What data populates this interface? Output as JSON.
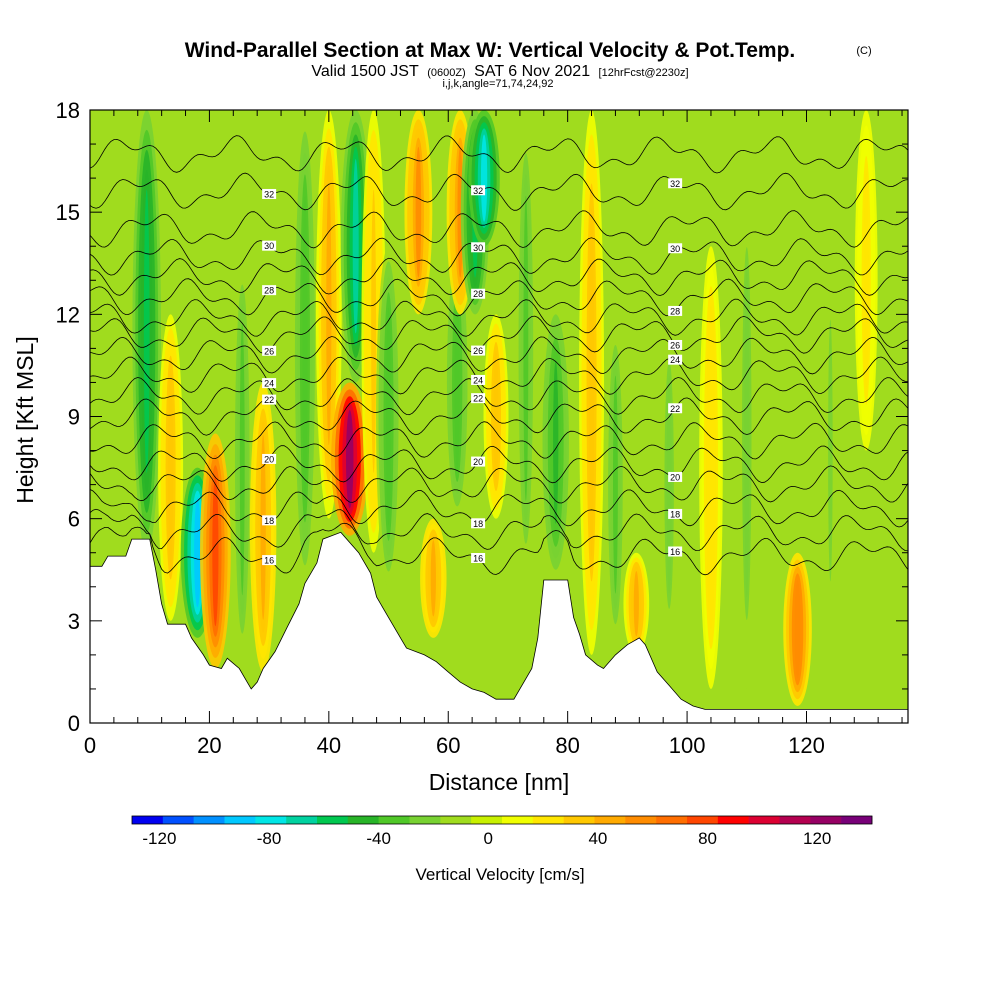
{
  "chart_data": {
    "type": "heatmap",
    "title": "Wind-Parallel Section at Max W: Vertical Velocity & Pot.Temp.",
    "title_mark": "(C)",
    "subtitle_parts": [
      "Valid 1500 JST",
      "(0600Z)",
      "SAT 6 Nov 2021",
      "[12hrFcst@2230z]"
    ],
    "subtitle2": "i,j,k,angle=71,74,24,92",
    "xlabel": "Distance [nm]",
    "ylabel": "Height [Kft MSL]",
    "xlim": [
      0,
      137
    ],
    "ylim": [
      0,
      18
    ],
    "x_ticks": [
      0,
      20,
      40,
      60,
      80,
      100,
      120
    ],
    "y_ticks": [
      0,
      3,
      6,
      9,
      12,
      15,
      18
    ],
    "colorbar": {
      "label": "Vertical Velocity [cm/s]",
      "range": [
        -130,
        140
      ],
      "ticks": [
        -120,
        -80,
        -40,
        0,
        40,
        80,
        120
      ],
      "colors": [
        "#0000f0",
        "#0050ff",
        "#0090ff",
        "#00c8ff",
        "#00e6e6",
        "#00d2a0",
        "#00c850",
        "#28b428",
        "#50c828",
        "#78d232",
        "#a0dc1e",
        "#c8f000",
        "#f0ff00",
        "#ffe600",
        "#ffc800",
        "#ffaa00",
        "#ff8c00",
        "#ff6e00",
        "#ff4600",
        "#ff0000",
        "#dc0032",
        "#b40050",
        "#960064",
        "#780078"
      ]
    },
    "terrain_kft": [
      [
        0,
        4.6
      ],
      [
        2,
        4.6
      ],
      [
        3,
        4.9
      ],
      [
        6,
        4.9
      ],
      [
        7,
        5.4
      ],
      [
        10,
        5.4
      ],
      [
        11,
        4.5
      ],
      [
        12,
        3.5
      ],
      [
        13,
        2.9
      ],
      [
        16,
        2.9
      ],
      [
        17,
        2.5
      ],
      [
        19,
        2.0
      ],
      [
        20,
        1.7
      ],
      [
        22,
        1.6
      ],
      [
        23,
        1.9
      ],
      [
        25,
        1.6
      ],
      [
        26,
        1.3
      ],
      [
        27,
        1.0
      ],
      [
        28,
        1.2
      ],
      [
        29,
        1.6
      ],
      [
        31,
        2.1
      ],
      [
        33,
        2.8
      ],
      [
        35,
        3.5
      ],
      [
        36,
        4.1
      ],
      [
        38,
        4.7
      ],
      [
        39,
        5.4
      ],
      [
        42,
        5.6
      ],
      [
        45,
        5.0
      ],
      [
        47,
        4.4
      ],
      [
        48,
        3.7
      ],
      [
        50,
        3.1
      ],
      [
        52,
        2.5
      ],
      [
        53,
        2.2
      ],
      [
        56,
        2.0
      ],
      [
        58,
        1.8
      ],
      [
        60,
        1.5
      ],
      [
        62,
        1.2
      ],
      [
        64,
        1.0
      ],
      [
        66,
        0.9
      ],
      [
        68,
        0.7
      ],
      [
        71,
        0.7
      ],
      [
        72,
        1.0
      ],
      [
        74,
        1.6
      ],
      [
        75,
        2.5
      ],
      [
        76,
        4.2
      ],
      [
        80,
        4.2
      ],
      [
        81,
        3.1
      ],
      [
        82,
        2.6
      ],
      [
        83,
        2.0
      ],
      [
        85,
        1.7
      ],
      [
        86,
        1.6
      ],
      [
        88,
        2.0
      ],
      [
        90,
        2.3
      ],
      [
        92,
        2.5
      ],
      [
        93,
        2.3
      ],
      [
        95,
        1.5
      ],
      [
        97,
        1.1
      ],
      [
        99,
        0.7
      ],
      [
        101,
        0.5
      ],
      [
        103,
        0.4
      ],
      [
        108,
        0.4
      ],
      [
        115,
        0.4
      ],
      [
        137,
        0.4
      ]
    ],
    "theta_levels": [
      16,
      17,
      18,
      19,
      20,
      21,
      22,
      23,
      24,
      25,
      26,
      27,
      28,
      29,
      30,
      31,
      32,
      33
    ],
    "theta_heights_kft": [
      [
        16,
        4.9
      ],
      [
        17,
        5.6
      ],
      [
        18,
        6.3
      ],
      [
        19,
        7.0
      ],
      [
        20,
        7.6
      ],
      [
        21,
        8.3
      ],
      [
        22,
        9.0
      ],
      [
        23,
        9.6
      ],
      [
        24,
        10.2
      ],
      [
        25,
        10.8
      ],
      [
        26,
        11.4
      ],
      [
        27,
        11.9
      ],
      [
        28,
        12.5
      ],
      [
        29,
        13.1
      ],
      [
        30,
        13.7
      ],
      [
        31,
        14.5
      ],
      [
        32,
        15.6
      ],
      [
        33,
        16.7
      ]
    ],
    "theta_label_values": [
      "16",
      "18",
      "20",
      "22",
      "24",
      "26",
      "28",
      "30",
      "32"
    ],
    "updraft_bands": [
      {
        "x": 9.5,
        "w_peak": -60,
        "bottom_kft": 5.0,
        "top_kft": 18.0
      },
      {
        "x": 13.5,
        "w_peak": 35,
        "bottom_kft": 3.0,
        "top_kft": 12.0
      },
      {
        "x": 18.0,
        "w_peak": -95,
        "bottom_kft": 2.5,
        "top_kft": 7.5
      },
      {
        "x": 21.0,
        "w_peak": 75,
        "bottom_kft": 1.6,
        "top_kft": 8.5
      },
      {
        "x": 25.5,
        "w_peak": -30,
        "bottom_kft": 1.5,
        "top_kft": 14.0
      },
      {
        "x": 29.0,
        "w_peak": 45,
        "bottom_kft": 1.5,
        "top_kft": 10.0
      },
      {
        "x": 36.0,
        "w_peak": -35,
        "bottom_kft": 4.0,
        "top_kft": 18.0
      },
      {
        "x": 40.0,
        "w_peak": 40,
        "bottom_kft": 6.0,
        "top_kft": 18.0
      },
      {
        "x": 43.5,
        "w_peak": 120,
        "bottom_kft": 5.5,
        "top_kft": 10.0
      },
      {
        "x": 44.5,
        "w_peak": -70,
        "bottom_kft": 10.0,
        "top_kft": 18.0
      },
      {
        "x": 47.5,
        "w_peak": 30,
        "bottom_kft": 5.0,
        "top_kft": 18.0
      },
      {
        "x": 50.0,
        "w_peak": -35,
        "bottom_kft": 4.0,
        "top_kft": 14.0
      },
      {
        "x": 55.0,
        "w_peak": 55,
        "bottom_kft": 12.0,
        "top_kft": 18.0
      },
      {
        "x": 57.5,
        "w_peak": 45,
        "bottom_kft": 2.5,
        "top_kft": 6.0
      },
      {
        "x": 61.5,
        "w_peak": -40,
        "bottom_kft": 6.0,
        "top_kft": 14.0
      },
      {
        "x": 62.0,
        "w_peak": 50,
        "bottom_kft": 12.0,
        "top_kft": 18.0
      },
      {
        "x": 64.5,
        "w_peak": -60,
        "bottom_kft": 12.0,
        "top_kft": 18.0
      },
      {
        "x": 66.0,
        "w_peak": -80,
        "bottom_kft": 14.0,
        "top_kft": 18.0
      },
      {
        "x": 68.0,
        "w_peak": 35,
        "bottom_kft": 6.0,
        "top_kft": 12.0
      },
      {
        "x": 73.0,
        "w_peak": -30,
        "bottom_kft": 4.0,
        "top_kft": 18.0
      },
      {
        "x": 78.0,
        "w_peak": -45,
        "bottom_kft": 4.5,
        "top_kft": 12.0
      },
      {
        "x": 84.0,
        "w_peak": 35,
        "bottom_kft": 2.0,
        "top_kft": 18.0
      },
      {
        "x": 88.0,
        "w_peak": -30,
        "bottom_kft": 2.0,
        "top_kft": 12.0
      },
      {
        "x": 91.5,
        "w_peak": 40,
        "bottom_kft": 2.0,
        "top_kft": 5.0
      },
      {
        "x": 97.0,
        "w_peak": -25,
        "bottom_kft": 2.0,
        "top_kft": 12.0
      },
      {
        "x": 104.0,
        "w_peak": 25,
        "bottom_kft": 1.0,
        "top_kft": 14.0
      },
      {
        "x": 110.0,
        "w_peak": -25,
        "bottom_kft": 1.0,
        "top_kft": 16.0
      },
      {
        "x": 118.5,
        "w_peak": 60,
        "bottom_kft": 0.5,
        "top_kft": 5.0
      },
      {
        "x": 124.0,
        "w_peak": -20,
        "bottom_kft": 2.0,
        "top_kft": 14.0
      },
      {
        "x": 130.0,
        "w_peak": 20,
        "bottom_kft": 8.0,
        "top_kft": 18.0
      }
    ],
    "grid": false
  }
}
